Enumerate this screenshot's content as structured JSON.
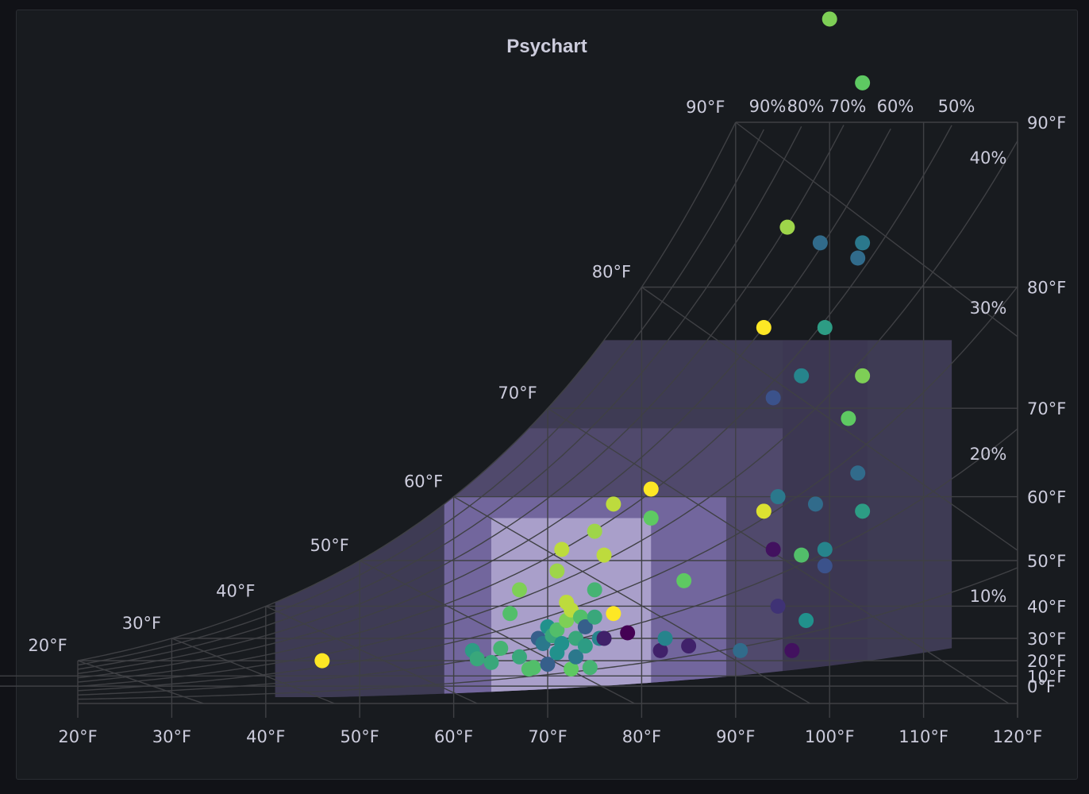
{
  "panel": {
    "title": "Psychart"
  },
  "colors": {
    "background": "#181b1f",
    "grid": "#3f4044",
    "text": "#ccccdc",
    "region_outer": "#5f5580",
    "region_middle": "#7d70ad",
    "region_inner": "#b7aed6"
  },
  "chart_data": {
    "type": "scatter",
    "title": "Psychart",
    "x_axis": {
      "ticks": [
        "20°F",
        "30°F",
        "40°F",
        "50°F",
        "60°F",
        "70°F",
        "80°F",
        "90°F",
        "100°F",
        "110°F",
        "120°F"
      ],
      "min": 20,
      "max": 120
    },
    "y_axis_right": {
      "ticks": [
        "0°F",
        "10°F",
        "20°F",
        "30°F",
        "40°F",
        "50°F",
        "60°F",
        "70°F",
        "80°F",
        "90°F"
      ]
    },
    "saturation_labels": [
      "20°F",
      "30°F",
      "40°F",
      "50°F",
      "60°F",
      "70°F",
      "80°F",
      "90°F"
    ],
    "rh_top_labels": [
      "90%",
      "80%",
      "70%",
      "60%",
      "50%"
    ],
    "rh_right_labels": [
      "40%",
      "30%",
      "20%",
      "10%"
    ],
    "color_scale": [
      "#440154",
      "#3b528b",
      "#21918c",
      "#5ec962",
      "#fde725"
    ],
    "points": [
      {
        "x": 46,
        "dp": 20,
        "c": 1.0
      },
      {
        "x": 62,
        "dp": 25,
        "c": 0.55
      },
      {
        "x": 62.5,
        "dp": 21,
        "c": 0.6
      },
      {
        "x": 64,
        "dp": 19,
        "c": 0.6
      },
      {
        "x": 65,
        "dp": 26,
        "c": 0.65
      },
      {
        "x": 67,
        "dp": 22,
        "c": 0.6
      },
      {
        "x": 66,
        "dp": 38,
        "c": 0.7
      },
      {
        "x": 67,
        "dp": 44,
        "c": 0.8
      },
      {
        "x": 68,
        "dp": 15,
        "c": 0.7
      },
      {
        "x": 68.5,
        "dp": 16,
        "c": 0.7
      },
      {
        "x": 69,
        "dp": 30,
        "c": 0.3
      },
      {
        "x": 69.5,
        "dp": 28,
        "c": 0.4
      },
      {
        "x": 70,
        "dp": 34,
        "c": 0.5
      },
      {
        "x": 70,
        "dp": 18,
        "c": 0.3
      },
      {
        "x": 70.5,
        "dp": 31,
        "c": 0.6
      },
      {
        "x": 71,
        "dp": 33,
        "c": 0.7
      },
      {
        "x": 71,
        "dp": 24,
        "c": 0.5
      },
      {
        "x": 71.5,
        "dp": 28,
        "c": 0.5
      },
      {
        "x": 71,
        "dp": 48,
        "c": 0.85
      },
      {
        "x": 71.5,
        "dp": 52,
        "c": 0.9
      },
      {
        "x": 72,
        "dp": 36,
        "c": 0.8
      },
      {
        "x": 72,
        "dp": 41,
        "c": 0.9
      },
      {
        "x": 72.5,
        "dp": 15,
        "c": 0.75
      },
      {
        "x": 72.5,
        "dp": 39,
        "c": 0.9
      },
      {
        "x": 73,
        "dp": 30,
        "c": 0.6
      },
      {
        "x": 73,
        "dp": 22,
        "c": 0.4
      },
      {
        "x": 73.5,
        "dp": 37,
        "c": 0.7
      },
      {
        "x": 74,
        "dp": 34,
        "c": 0.3
      },
      {
        "x": 74,
        "dp": 27,
        "c": 0.55
      },
      {
        "x": 74.5,
        "dp": 16,
        "c": 0.65
      },
      {
        "x": 75,
        "dp": 37,
        "c": 0.6
      },
      {
        "x": 75,
        "dp": 44,
        "c": 0.65
      },
      {
        "x": 75,
        "dp": 55,
        "c": 0.85
      },
      {
        "x": 75.5,
        "dp": 30,
        "c": 0.45
      },
      {
        "x": 76,
        "dp": 51,
        "c": 0.9
      },
      {
        "x": 76,
        "dp": 30,
        "c": 0.1
      },
      {
        "x": 77,
        "dp": 59,
        "c": 0.9
      },
      {
        "x": 77,
        "dp": 38,
        "c": 1.0
      },
      {
        "x": 78.5,
        "dp": 32,
        "c": 0.0
      },
      {
        "x": 81,
        "dp": 61,
        "c": 1.0
      },
      {
        "x": 81,
        "dp": 57,
        "c": 0.75
      },
      {
        "x": 82,
        "dp": 25,
        "c": 0.1
      },
      {
        "x": 82.5,
        "dp": 30,
        "c": 0.45
      },
      {
        "x": 85,
        "dp": 27,
        "c": 0.1
      },
      {
        "x": 84.5,
        "dp": 46,
        "c": 0.75
      },
      {
        "x": 90.5,
        "dp": 25,
        "c": 0.35
      },
      {
        "x": 93,
        "dp": 58,
        "c": 0.95
      },
      {
        "x": 93,
        "dp": 77,
        "c": 1.0
      },
      {
        "x": 94,
        "dp": 71,
        "c": 0.25
      },
      {
        "x": 94,
        "dp": 52,
        "c": 0.05
      },
      {
        "x": 94.5,
        "dp": 60,
        "c": 0.4
      },
      {
        "x": 94.5,
        "dp": 40,
        "c": 0.15
      },
      {
        "x": 95.5,
        "dp": 84,
        "c": 0.85
      },
      {
        "x": 96,
        "dp": 25,
        "c": 0.05
      },
      {
        "x": 97,
        "dp": 73,
        "c": 0.45
      },
      {
        "x": 97,
        "dp": 51,
        "c": 0.7
      },
      {
        "x": 97.5,
        "dp": 36,
        "c": 0.5
      },
      {
        "x": 98.5,
        "dp": 59,
        "c": 0.35
      },
      {
        "x": 99,
        "dp": 83,
        "c": 0.35
      },
      {
        "x": 99.5,
        "dp": 49,
        "c": 0.25
      },
      {
        "x": 99.5,
        "dp": 52,
        "c": 0.45
      },
      {
        "x": 99.5,
        "dp": 77,
        "c": 0.55
      },
      {
        "x": 100,
        "dp": 95,
        "c": 0.8
      },
      {
        "x": 102,
        "dp": 69,
        "c": 0.75
      },
      {
        "x": 103,
        "dp": 63,
        "c": 0.35
      },
      {
        "x": 103,
        "dp": 82,
        "c": 0.35
      },
      {
        "x": 103.5,
        "dp": 83,
        "c": 0.4
      },
      {
        "x": 103.5,
        "dp": 73,
        "c": 0.8
      },
      {
        "x": 103.5,
        "dp": 92,
        "c": 0.75
      },
      {
        "x": 103.5,
        "dp": 58,
        "c": 0.55
      },
      {
        "x": 103.5,
        "dp": 99,
        "c": 0.85
      }
    ]
  }
}
